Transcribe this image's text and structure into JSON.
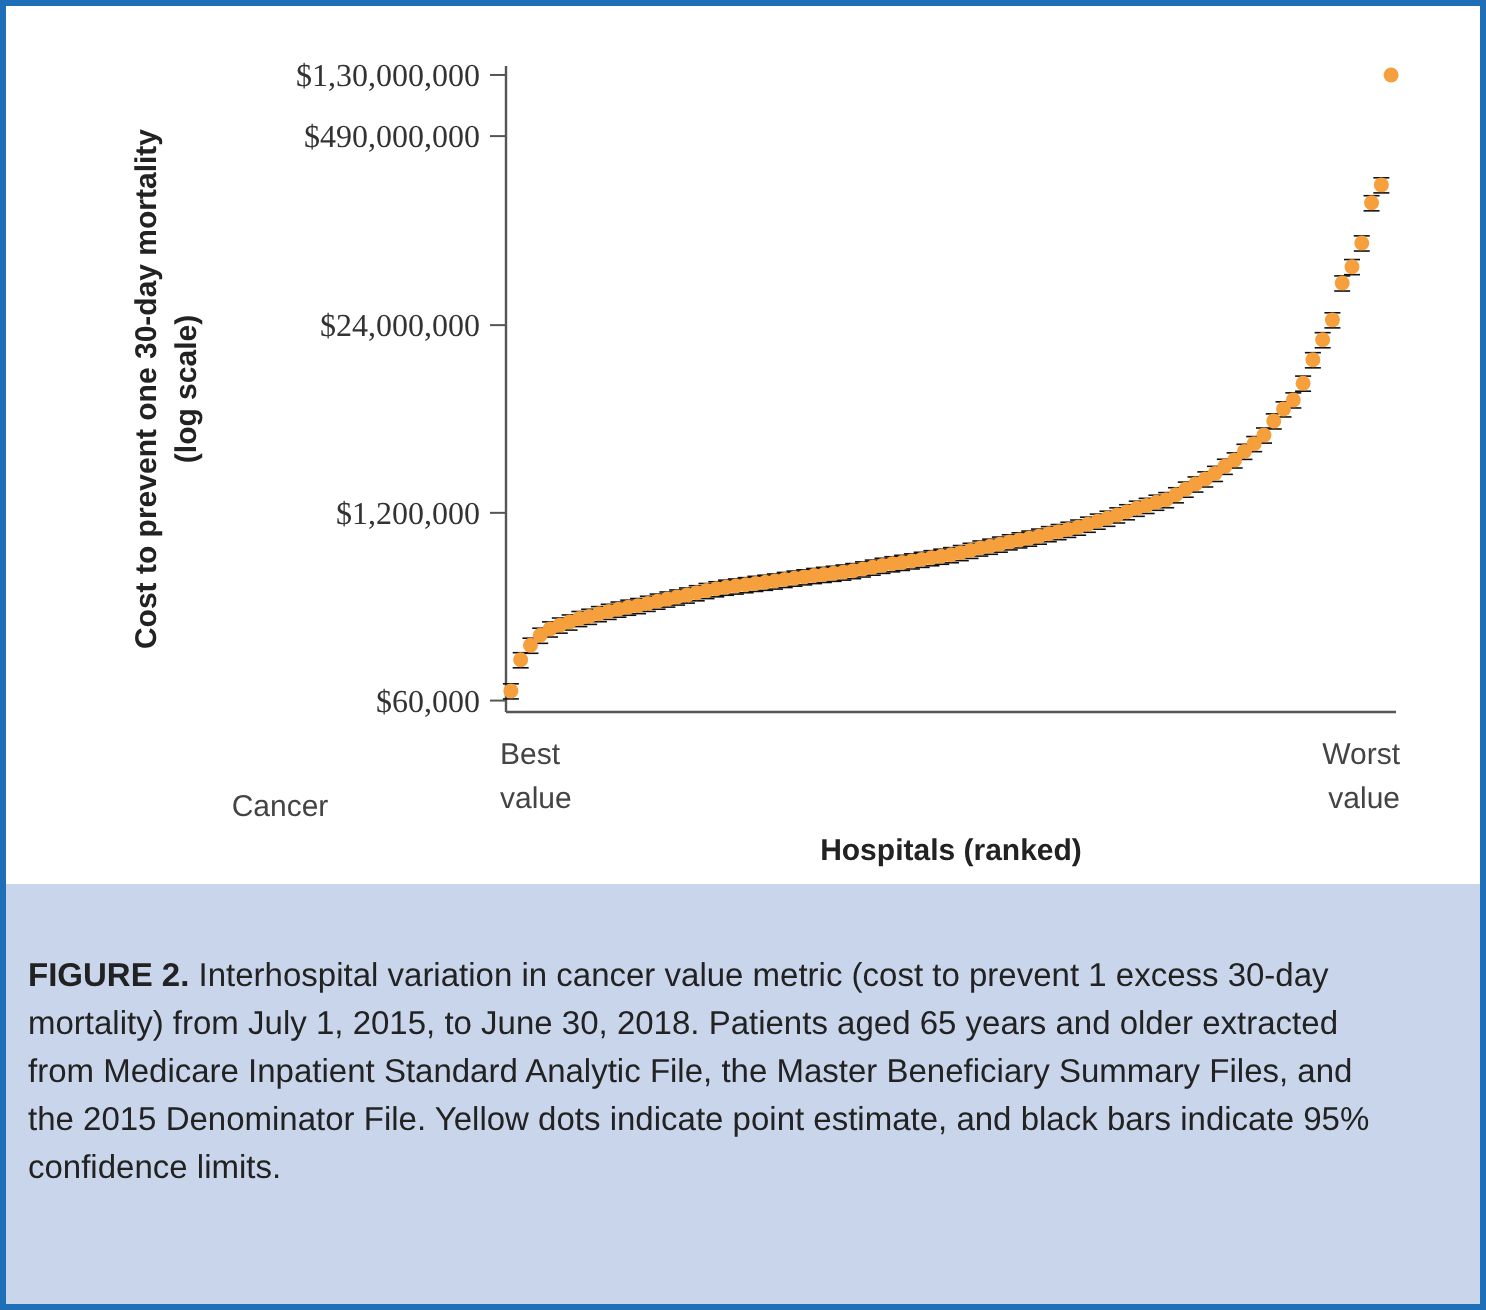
{
  "chart_data": {
    "type": "scatter",
    "ylabel": "Cost to prevent one 30-day mortality\n(log scale)",
    "xlabel": "Hospitals (ranked)",
    "title": "FIGURE 2.",
    "annotations": [
      "Cancer",
      "Interhospital variation in cancer value metric (cost to prevent 1 excess 30-day mortality) from July 1, 2015, to June 30, 2018. Patients aged 65 years and older extracted from Medicare Inpatient Standard Analytic File, the Master Beneficiary Summary Files, and the 2015 Denominator File. Yellow dots indicate point estimate, and black bars indicate 95% confidence limits.",
      "Best\nvalue",
      "Worst\nvalue"
    ],
    "log": "y",
    "grid": false,
    "marker": "circle",
    "tick_labels": "y",
    "ylim": [
      50000,
      1500000000
    ],
    "yticks": [
      {
        "value": 60000,
        "label": "$60,000"
      },
      {
        "value": 1200000,
        "label": "$1,200,000"
      },
      {
        "value": 24000000,
        "label": "$24,000,000"
      },
      {
        "value": 490000000,
        "label": "$490,000,000"
      },
      {
        "value": 1300000000,
        "label": "$1,30,000,000"
      }
    ],
    "categories": [
      null,
      null,
      null,
      null,
      null,
      null,
      null,
      null,
      null,
      null,
      null,
      null,
      null,
      null,
      null,
      null,
      null,
      null,
      null,
      null,
      null,
      null,
      null,
      null,
      null,
      null,
      null,
      null,
      null,
      null,
      null,
      null,
      null,
      null,
      null,
      null,
      null,
      null,
      null,
      null,
      null,
      null,
      null,
      null,
      null,
      null,
      null,
      null,
      null,
      null,
      null,
      null,
      null,
      null,
      null,
      null,
      null,
      null,
      null,
      null,
      null,
      null,
      null,
      null,
      null,
      null,
      null,
      null,
      null,
      null,
      null,
      null,
      null,
      null,
      null,
      null,
      null,
      null,
      null,
      null,
      null,
      null,
      null,
      null,
      null,
      null,
      null,
      null,
      null,
      null,
      null
    ],
    "color": "#f5a03c",
    "values": [
      70000,
      115000,
      145000,
      170000,
      188000,
      200000,
      210000,
      222000,
      230000,
      240000,
      249000,
      258000,
      266000,
      273000,
      283000,
      293000,
      303000,
      313000,
      323000,
      335000,
      347000,
      357000,
      366000,
      373000,
      381000,
      389000,
      396000,
      404000,
      414000,
      423000,
      432000,
      441000,
      449000,
      457000,
      466000,
      477000,
      490000,
      504000,
      519000,
      532000,
      544000,
      557000,
      571000,
      586000,
      600000,
      615000,
      636000,
      659000,
      684000,
      704000,
      728000,
      755000,
      779000,
      801000,
      827000,
      860000,
      889000,
      922000,
      955000,
      1000000,
      1050000,
      1100000,
      1160000,
      1220000,
      1290000,
      1350000,
      1420000,
      1480000,
      1600000,
      1750000,
      1900000,
      2060000,
      2250000,
      2520000,
      2790000,
      3200000,
      3620000,
      4150000,
      5200000,
      6300000,
      7270000,
      9500000,
      13800000,
      19000000,
      26100000,
      47000000,
      61000000,
      89000000,
      169000000,
      225000000,
      1300000000
    ],
    "errors": [
      8400,
      13800,
      17400,
      20400,
      22600,
      24000,
      25200,
      26600,
      27600,
      28800,
      29900,
      31000,
      31900,
      32800,
      34000,
      35200,
      36400,
      37600,
      38800,
      40200,
      41600,
      42800,
      43900,
      44800,
      45700,
      46700,
      47500,
      48500,
      49700,
      50800,
      51800,
      52900,
      53900,
      54800,
      55900,
      57200,
      58800,
      60500,
      62300,
      63800,
      65300,
      66800,
      68500,
      70300,
      72000,
      73800,
      76300,
      79100,
      82100,
      84500,
      87400,
      90600,
      93500,
      96100,
      99200,
      103000,
      107000,
      111000,
      115000,
      120000,
      126000,
      132000,
      139000,
      146000,
      155000,
      162000,
      170000,
      178000,
      192000,
      210000,
      228000,
      247000,
      270000,
      302000,
      335000,
      384000,
      434000,
      498000,
      624000,
      756000,
      872000,
      1140000,
      1660000,
      2280000,
      3130000,
      5640000,
      7320000,
      10700000,
      20300000,
      27000000,
      null
    ]
  }
}
